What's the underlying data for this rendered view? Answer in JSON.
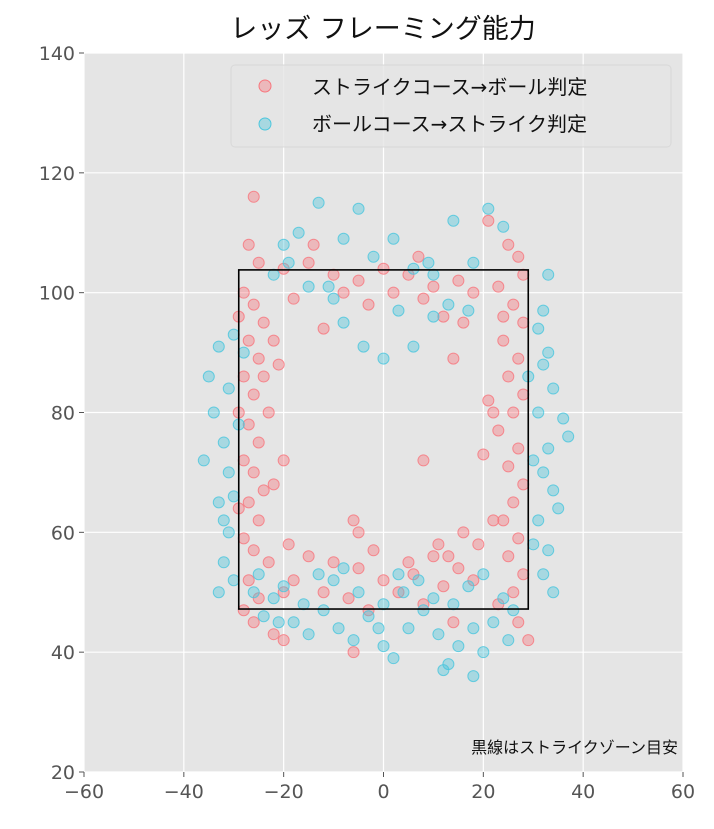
{
  "chart_data": {
    "type": "scatter",
    "title": "レッズ フレーミング能力",
    "xlabel": "",
    "ylabel": "",
    "xlim": [
      -60,
      60
    ],
    "ylim": [
      20,
      140
    ],
    "xticks": [
      -60,
      -40,
      -20,
      0,
      20,
      40,
      60
    ],
    "yticks": [
      20,
      40,
      60,
      80,
      100,
      120,
      140
    ],
    "xtick_labels": [
      "−60",
      "−40",
      "−20",
      "0",
      "20",
      "40",
      "60"
    ],
    "ytick_labels": [
      "20",
      "40",
      "60",
      "80",
      "100",
      "120",
      "140"
    ],
    "grid": true,
    "legend_position": "top-right",
    "annotation": "黒線はストライクゾーン目安",
    "strike_zone": {
      "x": [
        -29,
        29
      ],
      "y": [
        47.2,
        103.8
      ]
    },
    "series": [
      {
        "name": "ストライクコース→ボール判定",
        "color": "#f8767d",
        "points": [
          [
            -27,
            108
          ],
          [
            -26,
            116
          ],
          [
            -25,
            105
          ],
          [
            -28,
            100
          ],
          [
            -26,
            98
          ],
          [
            -24,
            95
          ],
          [
            -27,
            92
          ],
          [
            -25,
            89
          ],
          [
            -28,
            86
          ],
          [
            -26,
            83
          ],
          [
            -23,
            80
          ],
          [
            -27,
            78
          ],
          [
            -25,
            75
          ],
          [
            -28,
            72
          ],
          [
            -26,
            70
          ],
          [
            -24,
            67
          ],
          [
            -27,
            65
          ],
          [
            -25,
            62
          ],
          [
            -28,
            59
          ],
          [
            -26,
            57
          ],
          [
            -23,
            55
          ],
          [
            -27,
            52
          ],
          [
            -25,
            49
          ],
          [
            -28,
            47
          ],
          [
            -22,
            92
          ],
          [
            -21,
            88
          ],
          [
            -20,
            72
          ],
          [
            -22,
            68
          ],
          [
            -19,
            58
          ],
          [
            -24,
            86
          ],
          [
            -29,
            96
          ],
          [
            -29,
            80
          ],
          [
            -29,
            64
          ],
          [
            -26,
            45
          ],
          [
            -22,
            43
          ],
          [
            25,
            108
          ],
          [
            27,
            106
          ],
          [
            23,
            101
          ],
          [
            26,
            98
          ],
          [
            28,
            95
          ],
          [
            24,
            92
          ],
          [
            27,
            89
          ],
          [
            25,
            86
          ],
          [
            28,
            83
          ],
          [
            26,
            80
          ],
          [
            23,
            77
          ],
          [
            27,
            74
          ],
          [
            25,
            71
          ],
          [
            28,
            68
          ],
          [
            26,
            65
          ],
          [
            24,
            62
          ],
          [
            27,
            59
          ],
          [
            25,
            56
          ],
          [
            28,
            53
          ],
          [
            26,
            50
          ],
          [
            23,
            48
          ],
          [
            27,
            45
          ],
          [
            29,
            42
          ],
          [
            22,
            80
          ],
          [
            21,
            82
          ],
          [
            20,
            73
          ],
          [
            22,
            62
          ],
          [
            19,
            58
          ],
          [
            24,
            96
          ],
          [
            28,
            103
          ],
          [
            21,
            112
          ],
          [
            -15,
            105
          ],
          [
            -10,
            103
          ],
          [
            -5,
            102
          ],
          [
            0,
            104
          ],
          [
            5,
            103
          ],
          [
            10,
            101
          ],
          [
            15,
            102
          ],
          [
            -18,
            99
          ],
          [
            8,
            99
          ],
          [
            12,
            96
          ],
          [
            -12,
            94
          ],
          [
            -8,
            100
          ],
          [
            -20,
            104
          ],
          [
            18,
            100
          ],
          [
            -3,
            98
          ],
          [
            2,
            100
          ],
          [
            7,
            106
          ],
          [
            -14,
            108
          ],
          [
            14,
            89
          ],
          [
            16,
            95
          ],
          [
            -15,
            56
          ],
          [
            -10,
            55
          ],
          [
            -5,
            54
          ],
          [
            0,
            52
          ],
          [
            5,
            55
          ],
          [
            10,
            56
          ],
          [
            15,
            54
          ],
          [
            -18,
            52
          ],
          [
            -12,
            50
          ],
          [
            -7,
            49
          ],
          [
            3,
            50
          ],
          [
            8,
            48
          ],
          [
            12,
            51
          ],
          [
            18,
            52
          ],
          [
            -20,
            50
          ],
          [
            -2,
            57
          ],
          [
            6,
            53
          ],
          [
            -6,
            62
          ],
          [
            -5,
            60
          ],
          [
            16,
            60
          ],
          [
            13,
            56
          ],
          [
            8,
            72
          ],
          [
            -20,
            42
          ],
          [
            -6,
            40
          ],
          [
            14,
            45
          ],
          [
            -3,
            47
          ],
          [
            11,
            58
          ]
        ]
      },
      {
        "name": "ボールコース→ストライク判定",
        "color": "#4ac6dd",
        "points": [
          [
            -36,
            72
          ],
          [
            -35,
            86
          ],
          [
            -33,
            91
          ],
          [
            -34,
            80
          ],
          [
            -32,
            75
          ],
          [
            -31,
            70
          ],
          [
            -33,
            65
          ],
          [
            -31,
            60
          ],
          [
            -32,
            55
          ],
          [
            -33,
            50
          ],
          [
            -30,
            93
          ],
          [
            -31,
            84
          ],
          [
            -30,
            66
          ],
          [
            -29,
            78
          ],
          [
            -32,
            62
          ],
          [
            -30,
            52
          ],
          [
            -28,
            90
          ],
          [
            36,
            79
          ],
          [
            37,
            76
          ],
          [
            33,
            90
          ],
          [
            32,
            88
          ],
          [
            34,
            84
          ],
          [
            31,
            80
          ],
          [
            33,
            74
          ],
          [
            32,
            70
          ],
          [
            34,
            67
          ],
          [
            35,
            64
          ],
          [
            31,
            62
          ],
          [
            33,
            57
          ],
          [
            32,
            53
          ],
          [
            34,
            50
          ],
          [
            30,
            72
          ],
          [
            30,
            58
          ],
          [
            32,
            97
          ],
          [
            33,
            103
          ],
          [
            29,
            86
          ],
          [
            31,
            94
          ],
          [
            -20,
            108
          ],
          [
            -17,
            110
          ],
          [
            -13,
            115
          ],
          [
            -8,
            109
          ],
          [
            -5,
            114
          ],
          [
            -2,
            106
          ],
          [
            2,
            109
          ],
          [
            6,
            104
          ],
          [
            10,
            103
          ],
          [
            14,
            112
          ],
          [
            18,
            105
          ],
          [
            21,
            114
          ],
          [
            24,
            111
          ],
          [
            -22,
            103
          ],
          [
            -15,
            101
          ],
          [
            -10,
            99
          ],
          [
            -4,
            91
          ],
          [
            0,
            89
          ],
          [
            6,
            91
          ],
          [
            10,
            96
          ],
          [
            13,
            98
          ],
          [
            17,
            97
          ],
          [
            -8,
            95
          ],
          [
            -11,
            101
          ],
          [
            3,
            97
          ],
          [
            9,
            105
          ],
          [
            -19,
            105
          ],
          [
            -25,
            53
          ],
          [
            -22,
            49
          ],
          [
            -18,
            45
          ],
          [
            -15,
            43
          ],
          [
            -12,
            47
          ],
          [
            -9,
            44
          ],
          [
            -6,
            42
          ],
          [
            -3,
            46
          ],
          [
            0,
            41
          ],
          [
            2,
            39
          ],
          [
            5,
            44
          ],
          [
            8,
            47
          ],
          [
            11,
            43
          ],
          [
            13,
            38
          ],
          [
            15,
            41
          ],
          [
            18,
            44
          ],
          [
            20,
            40
          ],
          [
            22,
            45
          ],
          [
            25,
            42
          ],
          [
            -24,
            46
          ],
          [
            -20,
            51
          ],
          [
            -16,
            48
          ],
          [
            -10,
            52
          ],
          [
            -5,
            50
          ],
          [
            0,
            48
          ],
          [
            4,
            50
          ],
          [
            7,
            52
          ],
          [
            10,
            49
          ],
          [
            14,
            48
          ],
          [
            17,
            51
          ],
          [
            20,
            53
          ],
          [
            24,
            49
          ],
          [
            -13,
            53
          ],
          [
            -8,
            54
          ],
          [
            3,
            53
          ],
          [
            12,
            37
          ],
          [
            18,
            36
          ],
          [
            -1,
            44
          ],
          [
            -26,
            50
          ],
          [
            26,
            47
          ],
          [
            -21,
            45
          ]
        ]
      }
    ]
  }
}
